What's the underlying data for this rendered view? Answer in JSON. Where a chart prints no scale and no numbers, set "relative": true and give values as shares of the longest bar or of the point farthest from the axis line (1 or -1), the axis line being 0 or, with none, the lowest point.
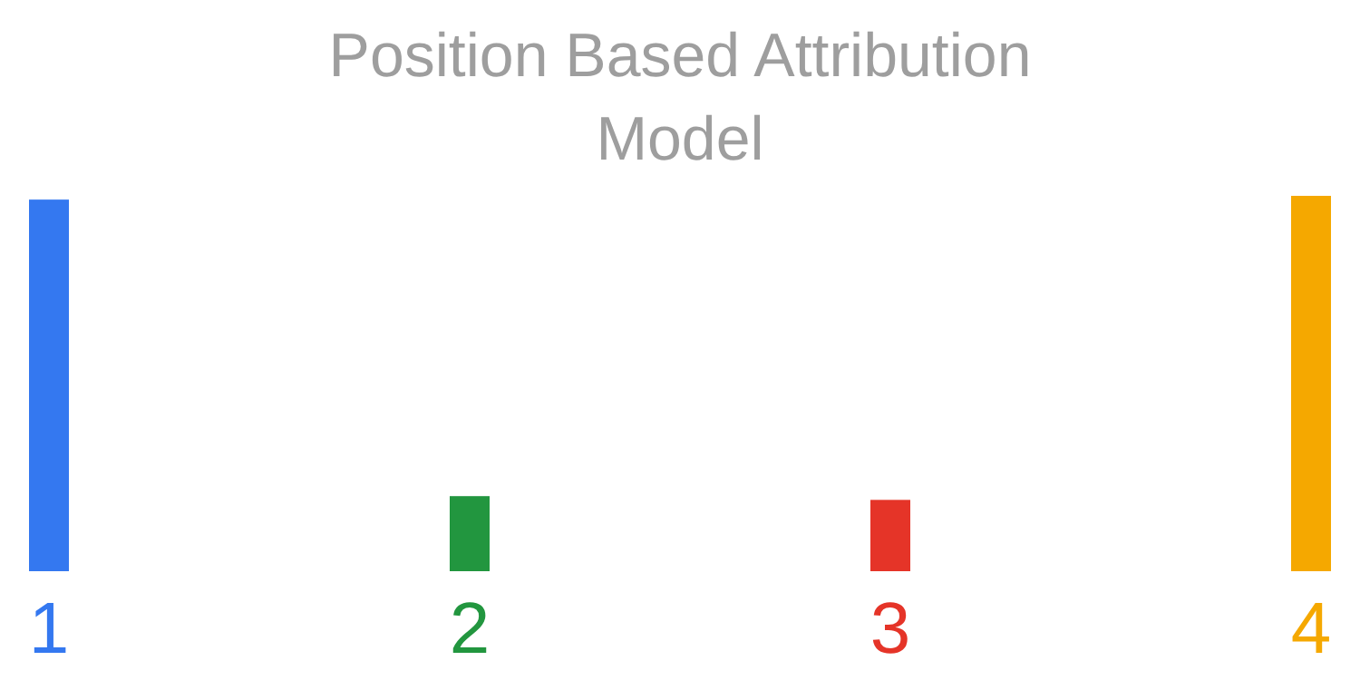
{
  "chart_data": {
    "type": "bar",
    "title": "Position Based Attribution Model",
    "relative": true,
    "categories": [
      "1",
      "2",
      "3",
      "4"
    ],
    "values": [
      0.99,
      0.2,
      0.19,
      1
    ],
    "colors": [
      "#3478f0",
      "#22963f",
      "#e53428",
      "#f5a800"
    ]
  }
}
